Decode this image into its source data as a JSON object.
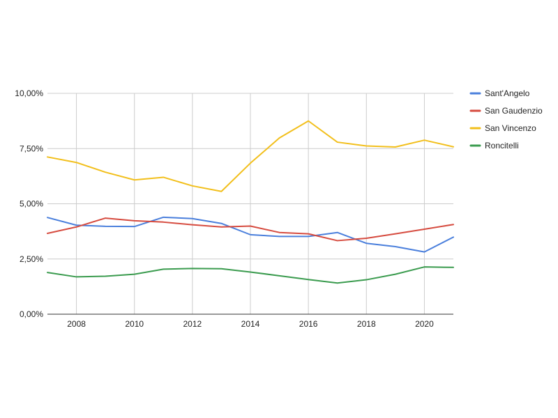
{
  "chart_data": {
    "type": "line",
    "title": "",
    "xlabel": "",
    "ylabel": "",
    "x": [
      2007,
      2008,
      2009,
      2010,
      2011,
      2012,
      2013,
      2014,
      2015,
      2016,
      2017,
      2018,
      2019,
      2020,
      2021
    ],
    "x_tick_labels": [
      "2008",
      "2010",
      "2012",
      "2014",
      "2016",
      "2018",
      "2020"
    ],
    "y_tick_labels": [
      "0,00%",
      "2,50%",
      "5,00%",
      "7,50%",
      "10,00%"
    ],
    "ylim": [
      0,
      10
    ],
    "y_unit": "%",
    "grid": true,
    "legend_position": "right",
    "series": [
      {
        "name": "Sant'Angelo",
        "color": "#4a7fdc",
        "values": [
          4.38,
          4.03,
          3.98,
          3.97,
          4.39,
          4.33,
          4.11,
          3.6,
          3.52,
          3.52,
          3.7,
          3.21,
          3.06,
          2.82,
          3.49
        ]
      },
      {
        "name": "San Gaudenzio",
        "color": "#d64b3f",
        "values": [
          3.66,
          3.95,
          4.35,
          4.23,
          4.17,
          4.05,
          3.95,
          3.99,
          3.7,
          3.64,
          3.33,
          3.44,
          3.64,
          3.85,
          4.06
        ]
      },
      {
        "name": "San Vincenzo",
        "color": "#f2bf1b",
        "values": [
          7.12,
          6.87,
          6.43,
          6.08,
          6.2,
          5.81,
          5.56,
          6.84,
          7.98,
          8.75,
          7.79,
          7.62,
          7.57,
          7.88,
          7.58
        ]
      },
      {
        "name": "Roncitelli",
        "color": "#3a9b4e",
        "values": [
          1.89,
          1.69,
          1.72,
          1.81,
          2.04,
          2.07,
          2.06,
          1.91,
          1.74,
          1.57,
          1.41,
          1.56,
          1.81,
          2.14,
          2.12
        ]
      }
    ]
  }
}
